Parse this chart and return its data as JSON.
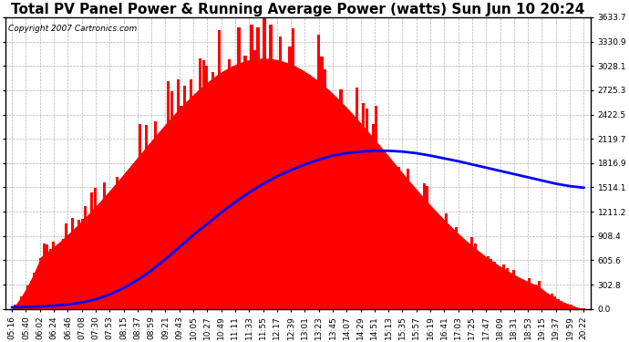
{
  "title": "Total PV Panel Power & Running Average Power (watts) Sun Jun 10 20:24",
  "copyright": "Copyright 2007 Cartronics.com",
  "y_max": 3633.7,
  "y_min": 0.0,
  "y_ticks": [
    0.0,
    302.8,
    605.6,
    908.4,
    1211.2,
    1514.1,
    1816.9,
    2119.7,
    2422.5,
    2725.3,
    3028.1,
    3330.9,
    3633.7
  ],
  "x_labels": [
    "05:16",
    "05:40",
    "06:02",
    "06:24",
    "06:46",
    "07:08",
    "07:30",
    "07:53",
    "08:15",
    "08:37",
    "08:59",
    "09:21",
    "09:43",
    "10:05",
    "10:27",
    "10:49",
    "11:11",
    "11:33",
    "11:55",
    "12:17",
    "12:39",
    "13:01",
    "13:23",
    "13:45",
    "14:07",
    "14:29",
    "14:51",
    "15:13",
    "15:35",
    "15:57",
    "16:19",
    "16:41",
    "17:03",
    "17:25",
    "17:47",
    "18:09",
    "18:31",
    "18:53",
    "19:15",
    "19:37",
    "19:59",
    "20:22"
  ],
  "background_color": "#ffffff",
  "plot_bg_color": "#ffffff",
  "bar_color": "#ff0000",
  "line_color": "#0000ff",
  "grid_color": "#aaaaaa",
  "title_fontsize": 11,
  "copyright_fontsize": 6.5,
  "tick_fontsize": 6.5,
  "running_avg": [
    20,
    25,
    30,
    40,
    55,
    80,
    120,
    180,
    260,
    360,
    480,
    620,
    770,
    920,
    1060,
    1200,
    1330,
    1450,
    1560,
    1650,
    1730,
    1800,
    1860,
    1910,
    1940,
    1960,
    1970,
    1970,
    1960,
    1940,
    1910,
    1875,
    1840,
    1800,
    1760,
    1720,
    1680,
    1640,
    1600,
    1560,
    1530,
    1510
  ],
  "n_fine": 180,
  "seed": 17
}
